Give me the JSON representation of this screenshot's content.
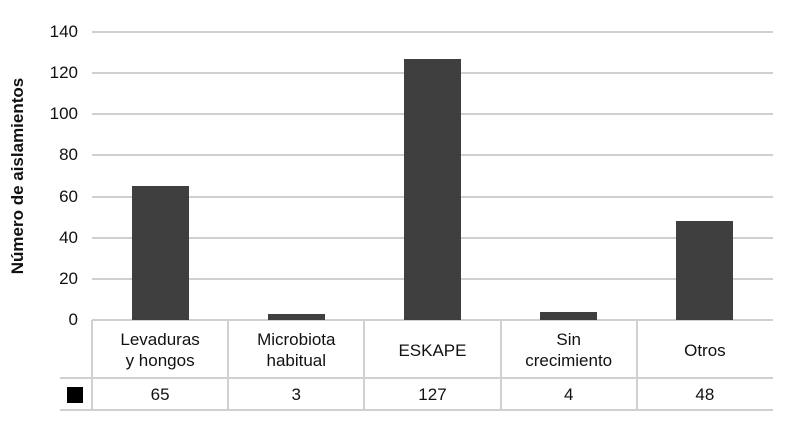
{
  "chart_data": {
    "type": "bar",
    "title": "",
    "xlabel": "",
    "ylabel": "Número de aislamientos",
    "ylim": [
      0,
      140
    ],
    "yticks": [
      "0",
      "20",
      "40",
      "60",
      "80",
      "100",
      "120",
      "140"
    ],
    "grid": true,
    "legend_position": "data-table",
    "categories": [
      [
        "Levaduras",
        "y hongos"
      ],
      [
        "Microbiota",
        "habitual"
      ],
      [
        "ESKAPE"
      ],
      [
        "Sin",
        "crecimiento"
      ],
      [
        "Otros"
      ]
    ],
    "values": [
      65,
      3,
      127,
      4,
      48
    ],
    "value_labels": [
      "65",
      "3",
      "127",
      "4",
      "48"
    ],
    "bar_color": "#3f3f3f",
    "legend_color": "#000000"
  }
}
